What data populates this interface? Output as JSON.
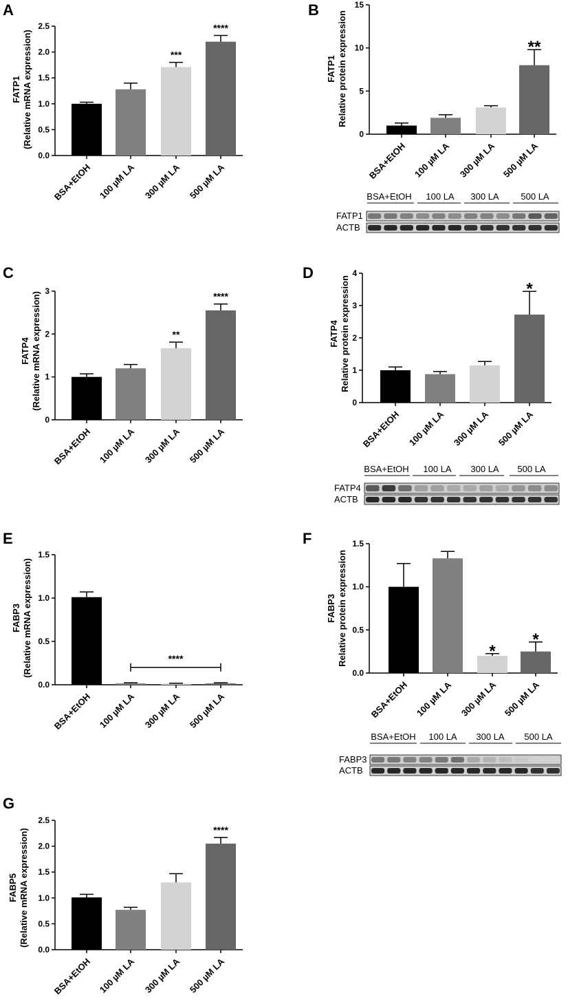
{
  "chart_data": [
    {
      "panel": "A",
      "type": "bar",
      "categories": [
        "BSA+EtOH",
        "100 µM LA",
        "300 µM LA",
        "500 µM LA"
      ],
      "values": [
        1.0,
        1.28,
        1.71,
        2.2
      ],
      "errors": [
        0.03,
        0.12,
        0.09,
        0.12
      ],
      "significance": [
        "",
        "",
        "***",
        "****"
      ],
      "ylabel": "FATP1 (Relative mRNA expression)",
      "ylim": [
        0,
        2.5
      ],
      "yticks": [
        "0.0",
        "0.5",
        "1.0",
        "1.5",
        "2.0",
        "2.5"
      ],
      "colors": [
        "#000000",
        "#808080",
        "#d3d3d3",
        "#666666"
      ]
    },
    {
      "panel": "B",
      "type": "bar",
      "categories": [
        "BSA+EtOH",
        "100 µM LA",
        "300 µM LA",
        "500 µM LA"
      ],
      "values": [
        1.0,
        1.9,
        3.1,
        8.0
      ],
      "errors": [
        0.3,
        0.35,
        0.2,
        1.8
      ],
      "significance": [
        "",
        "",
        "",
        "**"
      ],
      "ylabel": "FATP1 Relative protein expression",
      "ylim": [
        0,
        15
      ],
      "yticks": [
        "0",
        "5",
        "10",
        "15"
      ],
      "colors": [
        "#000000",
        "#808080",
        "#d3d3d3",
        "#666666"
      ],
      "blot": {
        "groups": [
          "BSA+EtOH",
          "100 LA",
          "300 LA",
          "500 LA"
        ],
        "rows": [
          "FATP1",
          "ACTB"
        ]
      }
    },
    {
      "panel": "C",
      "type": "bar",
      "categories": [
        "BSA+EtOH",
        "100 µM LA",
        "300 µM LA",
        "500 µM LA"
      ],
      "values": [
        1.0,
        1.2,
        1.67,
        2.55
      ],
      "errors": [
        0.07,
        0.09,
        0.14,
        0.15
      ],
      "significance": [
        "",
        "",
        "**",
        "****"
      ],
      "ylabel": "FATP4 (Relative mRNA expression)",
      "ylim": [
        0,
        3
      ],
      "yticks": [
        "0",
        "1",
        "2",
        "3"
      ],
      "colors": [
        "#000000",
        "#808080",
        "#d3d3d3",
        "#666666"
      ]
    },
    {
      "panel": "D",
      "type": "bar",
      "categories": [
        "BSA+EtOH",
        "100 µM LA",
        "300 µM LA",
        "500 µM LA"
      ],
      "values": [
        1.0,
        0.88,
        1.15,
        2.72
      ],
      "errors": [
        0.1,
        0.08,
        0.12,
        0.72
      ],
      "significance": [
        "",
        "",
        "",
        "*"
      ],
      "ylabel": "FATP4 Relative protein expression",
      "ylim": [
        0,
        4
      ],
      "yticks": [
        "0",
        "1",
        "2",
        "3",
        "4"
      ],
      "colors": [
        "#000000",
        "#808080",
        "#d3d3d3",
        "#666666"
      ],
      "blot": {
        "groups": [
          "BSA+EtOH",
          "100 LA",
          "300 LA",
          "500 LA"
        ],
        "rows": [
          "FATP4",
          "ACTB"
        ]
      }
    },
    {
      "panel": "E",
      "type": "bar",
      "categories": [
        "BSA+EtOH",
        "100 µM LA",
        "300 µM LA",
        "500 µM LA"
      ],
      "values": [
        1.01,
        0.015,
        0.012,
        0.015
      ],
      "errors": [
        0.06,
        0.008,
        0.006,
        0.008
      ],
      "significance": [
        "",
        "",
        "",
        ""
      ],
      "bracket": {
        "from": 1,
        "to": 3,
        "y": 0.2,
        "label": "****"
      },
      "ylabel": "FABP3 (Relative mRNA expression)",
      "ylim": [
        0,
        1.5
      ],
      "yticks": [
        "0.0",
        "0.5",
        "1.0",
        "1.5"
      ],
      "colors": [
        "#000000",
        "#808080",
        "#d3d3d3",
        "#666666"
      ]
    },
    {
      "panel": "F",
      "type": "bar",
      "categories": [
        "BSA+EtOH",
        "100 µM LA",
        "300 µM LA",
        "500 µM LA"
      ],
      "values": [
        1.0,
        1.33,
        0.2,
        0.25
      ],
      "errors": [
        0.27,
        0.08,
        0.025,
        0.11
      ],
      "significance": [
        "",
        "",
        "*",
        "*"
      ],
      "ylabel": "FABP3 Relative protein expression",
      "ylim": [
        0,
        1.5
      ],
      "yticks": [
        "0.0",
        "0.5",
        "1.0",
        "1.5"
      ],
      "colors": [
        "#000000",
        "#808080",
        "#d3d3d3",
        "#666666"
      ],
      "blot": {
        "groups": [
          "BSA+EtOH",
          "100 LA",
          "300 LA",
          "500 LA"
        ],
        "rows": [
          "FABP3",
          "ACTB"
        ]
      }
    },
    {
      "panel": "G",
      "type": "bar",
      "categories": [
        "BSA+EtOH",
        "100 µM LA",
        "300 µM LA",
        "500 µM LA"
      ],
      "values": [
        1.01,
        0.77,
        1.3,
        2.05
      ],
      "errors": [
        0.06,
        0.05,
        0.17,
        0.12
      ],
      "significance": [
        "",
        "",
        "",
        "****"
      ],
      "ylabel": "FABP5 (Relative mRNA expression)",
      "ylim": [
        0,
        2.5
      ],
      "yticks": [
        "0.0",
        "0.5",
        "1.0",
        "1.5",
        "2.0",
        "2.5"
      ],
      "colors": [
        "#000000",
        "#808080",
        "#d3d3d3",
        "#666666"
      ]
    }
  ]
}
